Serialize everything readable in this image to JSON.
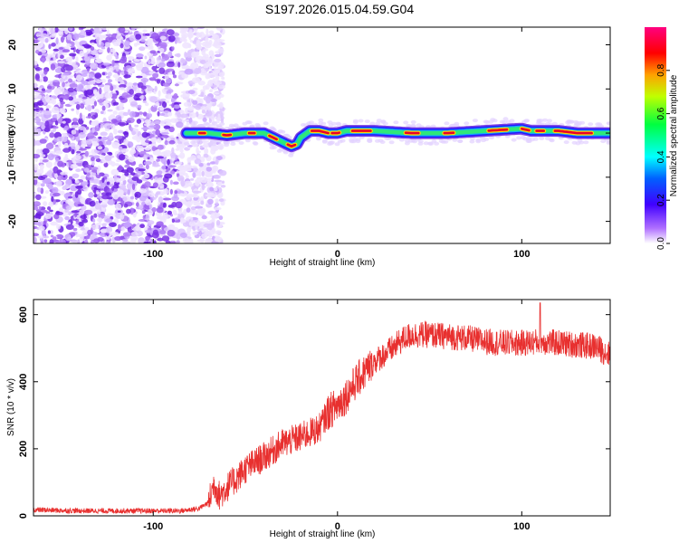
{
  "title": "S197.2026.015.04.59.G04",
  "chart_data": [
    {
      "type": "heatmap",
      "name": "spectrogram",
      "xlabel": "Height of straight line (km)",
      "ylabel": "Frequency (Hz)",
      "xlim": [
        -165,
        148
      ],
      "ylim": [
        -25,
        24
      ],
      "x_ticks": [
        -100,
        0,
        100
      ],
      "x_tick_labels": [
        "-100",
        "0",
        "100"
      ],
      "y_ticks": [
        20,
        10,
        0,
        -10,
        -20
      ],
      "y_tick_labels": [
        "20",
        "10",
        "0",
        "-10",
        "-20"
      ],
      "noise_region_x": [
        -165,
        -72
      ],
      "signal_track": {
        "x": [
          -82,
          -70,
          -60,
          -50,
          -40,
          -35,
          -30,
          -25,
          -22,
          -20,
          -15,
          -10,
          -5,
          0,
          5,
          10,
          20,
          40,
          60,
          80,
          100,
          105,
          110,
          120,
          130,
          148
        ],
        "freq": [
          0,
          0,
          -0.5,
          0,
          0,
          -1,
          -2,
          -3,
          -2.5,
          -1,
          0.5,
          0.5,
          0,
          0,
          0.5,
          0.5,
          0.5,
          0,
          0,
          0.5,
          1,
          0.5,
          0.5,
          0.5,
          0,
          0
        ]
      },
      "colorbar": {
        "label": "Normalized spectral amplitude",
        "range": [
          0,
          1
        ],
        "ticks": [
          0.0,
          0.2,
          0.4,
          0.6,
          0.8
        ],
        "tick_labels": [
          "0.0",
          "0.2",
          "0.4",
          "0.6",
          "0.8"
        ],
        "colors": [
          "#ffffff",
          "#7a2be2",
          "#0000ff",
          "#00ffff",
          "#00ff00",
          "#ffff00",
          "#ff8000",
          "#ff0000",
          "#ff00ff"
        ]
      }
    },
    {
      "type": "line",
      "name": "snr",
      "xlabel": "Height of straight line (km)",
      "ylabel": "SNR (10 * v/v)",
      "xlim": [
        -165,
        148
      ],
      "ylim": [
        0,
        645
      ],
      "x_ticks": [
        -100,
        0,
        100
      ],
      "x_tick_labels": [
        "-100",
        "0",
        "100"
      ],
      "y_ticks": [
        0,
        200,
        400,
        600
      ],
      "y_tick_labels": [
        "0",
        "200",
        "400",
        "600"
      ],
      "color": "#e8302f",
      "series": [
        {
          "name": "SNR",
          "x": [
            -165,
            -140,
            -120,
            -100,
            -85,
            -75,
            -70,
            -67,
            -64,
            -60,
            -55,
            -50,
            -40,
            -30,
            -20,
            -10,
            -5,
            0,
            5,
            10,
            15,
            20,
            25,
            30,
            35,
            40,
            50,
            60,
            70,
            80,
            90,
            100,
            110,
            120,
            130,
            140,
            148
          ],
          "values": [
            18,
            15,
            15,
            15,
            15,
            22,
            40,
            95,
            60,
            85,
            110,
            140,
            175,
            215,
            235,
            260,
            310,
            330,
            360,
            400,
            430,
            460,
            480,
            500,
            525,
            540,
            540,
            535,
            530,
            520,
            515,
            515,
            520,
            515,
            510,
            505,
            480
          ]
        }
      ],
      "notable_spike": {
        "x": 110,
        "value": 635
      }
    }
  ]
}
